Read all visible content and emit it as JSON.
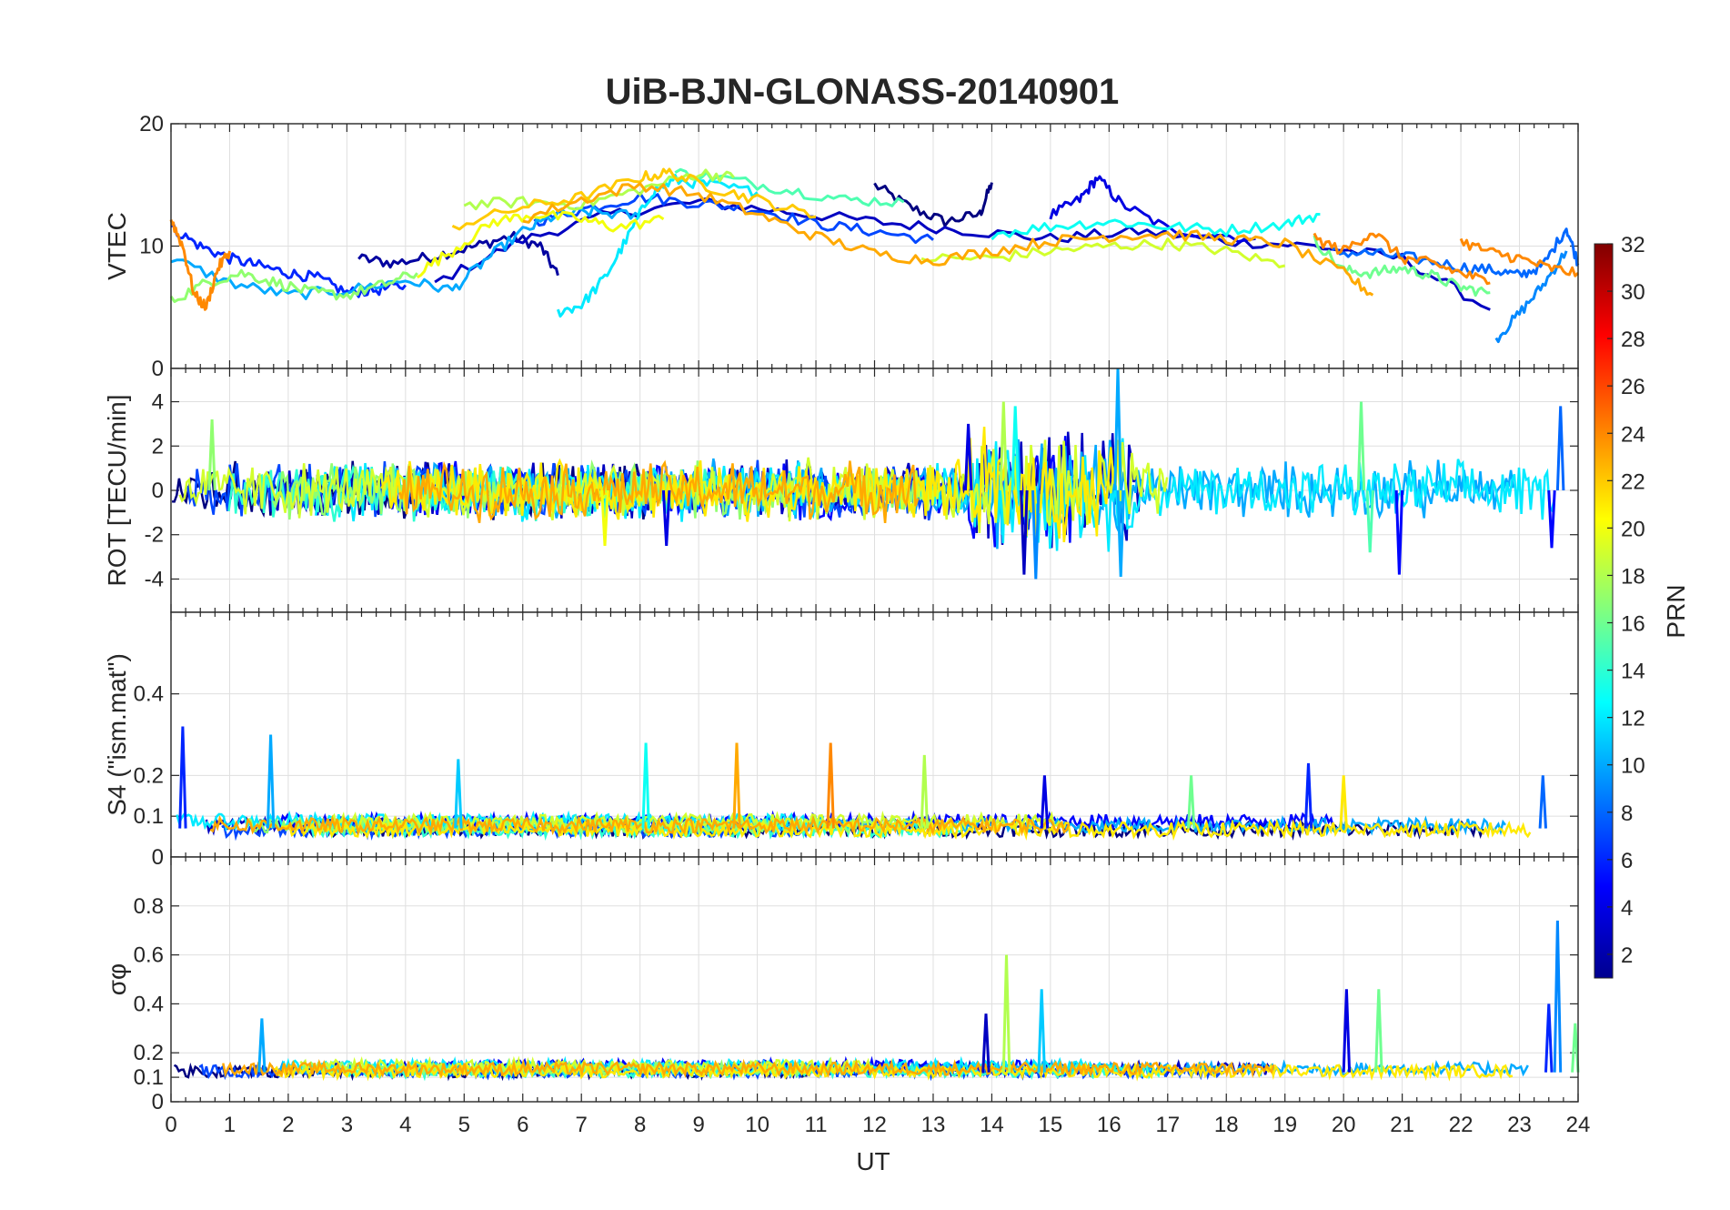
{
  "chart_data": {
    "type": "line",
    "title": "UiB-BJN-GLONASS-20140901",
    "xlabel": "UT",
    "xlim": [
      0,
      24
    ],
    "xticks": [
      "0",
      "1",
      "2",
      "3",
      "4",
      "5",
      "6",
      "7",
      "8",
      "9",
      "10",
      "11",
      "12",
      "13",
      "14",
      "15",
      "16",
      "17",
      "18",
      "19",
      "20",
      "21",
      "22",
      "23",
      "24"
    ],
    "colorbar": {
      "label": "PRN",
      "range": [
        1,
        32
      ],
      "ticks": [
        "2",
        "4",
        "6",
        "8",
        "10",
        "12",
        "14",
        "16",
        "18",
        "20",
        "22",
        "24",
        "26",
        "28",
        "30",
        "32"
      ]
    },
    "panels": [
      {
        "name": "vtec",
        "ylabel": "VTEC",
        "ylim": [
          0,
          20
        ],
        "yticks": [
          {
            "v": 0,
            "label": "0"
          },
          {
            "v": 10,
            "label": "10"
          },
          {
            "v": 20,
            "label": "20"
          }
        ],
        "series": [
          {
            "prn": 1,
            "x": [
              12.0,
              12.6,
              13.2,
              13.8,
              14.0
            ],
            "y": [
              15.0,
              13.2,
              12.0,
              12.6,
              15.2
            ]
          },
          {
            "prn": 2,
            "x": [
              3.2,
              3.8,
              4.5,
              5.2,
              5.8,
              6.3,
              6.6
            ],
            "y": [
              9.0,
              8.6,
              9.2,
              10.0,
              10.8,
              10.0,
              7.6
            ]
          },
          {
            "prn": 3,
            "x": [
              4.5,
              6.0,
              7.5,
              9.0,
              10.5,
              12.0,
              13.5,
              15.0,
              16.5,
              18.0,
              19.5,
              21.0,
              22.5
            ],
            "y": [
              7.0,
              10.5,
              12.6,
              13.6,
              12.8,
              12.0,
              11.3,
              10.6,
              11.2,
              10.4,
              10.0,
              9.0,
              4.8
            ]
          },
          {
            "prn": 4,
            "x": [
              15.0,
              15.5,
              15.8,
              16.2,
              17.0,
              18.5
            ],
            "y": [
              12.5,
              13.8,
              15.6,
              13.5,
              11.4,
              10.6
            ]
          },
          {
            "prn": 6,
            "x": [
              0.0,
              0.5,
              1.0,
              1.5,
              2.0,
              2.5,
              3.0,
              3.5,
              4.0
            ],
            "y": [
              11.5,
              10.0,
              9.0,
              8.4,
              7.8,
              7.4,
              6.2,
              6.4,
              6.8
            ]
          },
          {
            "prn": 7,
            "x": [
              6.2,
              7.0,
              8.0,
              9.0,
              10.0,
              11.0,
              12.0,
              13.0
            ],
            "y": [
              12.0,
              13.0,
              14.0,
              13.5,
              13.0,
              11.8,
              11.2,
              10.5
            ]
          },
          {
            "prn": 8,
            "x": [
              19.8,
              20.5,
              21.2,
              22.0,
              22.6,
              23.0,
              23.4,
              23.8,
              24.0
            ],
            "y": [
              9.5,
              9.4,
              9.0,
              8.3,
              8.0,
              7.6,
              8.4,
              11.5,
              8.6
            ]
          },
          {
            "prn": 9,
            "x": [
              22.6,
              23.0,
              23.4,
              23.8
            ],
            "y": [
              2.4,
              4.5,
              6.8,
              9.6
            ]
          },
          {
            "prn": 10,
            "x": [
              0.0,
              1.0,
              2.0,
              3.0,
              4.0,
              4.8,
              5.4,
              6.0,
              6.6,
              7.2,
              8.0
            ],
            "y": [
              9.0,
              7.0,
              6.0,
              6.4,
              7.2,
              6.4,
              9.0,
              11.2,
              12.6,
              12.8,
              12.4
            ]
          },
          {
            "prn": 12,
            "x": [
              6.6,
              7.0,
              7.4,
              7.8,
              8.2,
              8.6,
              9.2,
              10.0
            ],
            "y": [
              4.6,
              5.2,
              7.4,
              10.8,
              14.4,
              15.4,
              15.0,
              14.4
            ]
          },
          {
            "prn": 13,
            "x": [
              14.0,
              15.0,
              16.0,
              17.0,
              18.0,
              19.0,
              19.6
            ],
            "y": [
              11.0,
              11.6,
              12.0,
              11.6,
              11.3,
              11.8,
              12.6
            ]
          },
          {
            "prn": 15,
            "x": [
              8.6,
              9.5,
              10.5,
              11.5,
              12.5
            ],
            "y": [
              16.0,
              15.5,
              14.6,
              13.8,
              13.6
            ]
          },
          {
            "prn": 16,
            "x": [
              19.5,
              20.0,
              20.5,
              21.0,
              21.5,
              22.0,
              22.5
            ],
            "y": [
              10.5,
              8.0,
              7.8,
              8.2,
              7.6,
              6.6,
              6.2
            ]
          },
          {
            "prn": 17,
            "x": [
              0.0,
              0.6,
              1.2,
              1.8,
              2.4,
              3.0,
              3.6,
              4.2
            ],
            "y": [
              5.5,
              7.0,
              7.8,
              7.0,
              6.2,
              6.0,
              6.8,
              7.8
            ]
          },
          {
            "prn": 18,
            "x": [
              5.0,
              6.0,
              7.0,
              8.0,
              9.0,
              9.6
            ],
            "y": [
              13.4,
              13.6,
              13.4,
              14.6,
              16.0,
              15.6
            ]
          },
          {
            "prn": 19,
            "x": [
              12.8,
              14.0,
              15.0,
              16.0,
              17.0,
              18.0,
              19.0
            ],
            "y": [
              9.0,
              9.0,
              9.6,
              10.0,
              10.2,
              9.6,
              8.4
            ]
          },
          {
            "prn": 20,
            "x": [
              4.2,
              4.8,
              5.5,
              6.2,
              7.0,
              7.6,
              8.4
            ],
            "y": [
              7.8,
              9.6,
              12.0,
              12.6,
              12.2,
              11.5,
              12.2
            ]
          },
          {
            "prn": 22,
            "x": [
              4.8,
              6.0,
              7.0,
              8.0,
              8.5,
              9.2,
              10.0,
              11.0
            ],
            "y": [
              11.6,
              13.2,
              14.0,
              15.6,
              16.0,
              14.8,
              13.8,
              12.4
            ]
          },
          {
            "prn": 23,
            "x": [
              6.0,
              7.0,
              8.0,
              9.0,
              10.0,
              11.0,
              12.0,
              13.0,
              14.0,
              15.0,
              16.0,
              17.0,
              18.0,
              19.0,
              20.0,
              20.5
            ],
            "y": [
              12.2,
              13.8,
              15.0,
              14.2,
              12.6,
              10.8,
              9.4,
              8.8,
              9.6,
              10.4,
              10.8,
              11.0,
              10.6,
              10.2,
              7.8,
              6.0
            ]
          },
          {
            "prn": 24,
            "x": [
              0.0,
              0.2,
              0.4,
              0.6,
              0.8,
              1.0
            ],
            "y": [
              12.2,
              10.0,
              6.0,
              5.0,
              8.2,
              9.6
            ]
          },
          {
            "prn": 24,
            "x": [
              22.0,
              22.5,
              23.0,
              23.5,
              24.0
            ],
            "y": [
              10.4,
              9.5,
              9.0,
              8.2,
              7.8
            ]
          },
          {
            "prn": 24,
            "x": [
              19.5,
              20.0,
              20.5,
              21.0,
              21.5,
              22.0,
              22.5
            ],
            "y": [
              10.6,
              9.6,
              11.2,
              9.0,
              8.6,
              7.8,
              7.0
            ]
          }
        ]
      },
      {
        "name": "rot",
        "ylabel": "ROT [TECU/min]",
        "ylim": [
          -5.5,
          5.5
        ],
        "yticks": [
          {
            "v": -4,
            "label": "-4"
          },
          {
            "v": -2,
            "label": "-2"
          },
          {
            "v": 0,
            "label": "0"
          },
          {
            "v": 2,
            "label": "2"
          },
          {
            "v": 4,
            "label": "4"
          }
        ],
        "spikes": [
          {
            "prn": 4,
            "x": 13.6,
            "y": 3.0
          },
          {
            "prn": 3,
            "x": 14.55,
            "y": -3.8
          },
          {
            "prn": 18,
            "x": 14.2,
            "y": 4.0
          },
          {
            "prn": 9,
            "x": 14.75,
            "y": -4.0
          },
          {
            "prn": 13,
            "x": 14.4,
            "y": 3.8
          },
          {
            "prn": 10,
            "x": 16.15,
            "y": 5.5
          },
          {
            "prn": 10,
            "x": 16.2,
            "y": -3.9
          },
          {
            "prn": 4,
            "x": 8.45,
            "y": -2.5
          },
          {
            "prn": 20,
            "x": 7.4,
            "y": -2.5
          },
          {
            "prn": 16,
            "x": 20.3,
            "y": 4.0
          },
          {
            "prn": 15,
            "x": 20.45,
            "y": -2.8
          },
          {
            "prn": 5,
            "x": 20.95,
            "y": -3.8
          },
          {
            "prn": 8,
            "x": 23.7,
            "y": 3.8
          },
          {
            "prn": 5,
            "x": 23.55,
            "y": -2.6
          },
          {
            "prn": 17,
            "x": 0.7,
            "y": 3.2
          }
        ]
      },
      {
        "name": "s4",
        "ylabel": "S4 (\"ism.mat\")",
        "ylim": [
          0,
          0.6
        ],
        "yticks": [
          {
            "v": 0,
            "label": "0"
          },
          {
            "v": 0.1,
            "label": "0.1"
          },
          {
            "v": 0.2,
            "label": "0.2"
          },
          {
            "v": 0.4,
            "label": "0.4"
          }
        ],
        "base": 0.07,
        "spikes": [
          {
            "prn": 6,
            "x": 0.2,
            "y": 0.32
          },
          {
            "prn": 10,
            "x": 1.7,
            "y": 0.3
          },
          {
            "prn": 11,
            "x": 4.9,
            "y": 0.24
          },
          {
            "prn": 13,
            "x": 8.1,
            "y": 0.28
          },
          {
            "prn": 23,
            "x": 9.65,
            "y": 0.28
          },
          {
            "prn": 24,
            "x": 11.25,
            "y": 0.28
          },
          {
            "prn": 18,
            "x": 12.85,
            "y": 0.25
          },
          {
            "prn": 4,
            "x": 14.9,
            "y": 0.2
          },
          {
            "prn": 6,
            "x": 19.4,
            "y": 0.23
          },
          {
            "prn": 8,
            "x": 23.4,
            "y": 0.2
          },
          {
            "prn": 21,
            "x": 20.0,
            "y": 0.2
          },
          {
            "prn": 16,
            "x": 17.4,
            "y": 0.2
          }
        ]
      },
      {
        "name": "sigma",
        "ylabel": "σφ",
        "ylim": [
          0,
          1
        ],
        "yticks": [
          {
            "v": 0,
            "label": "0"
          },
          {
            "v": 0.1,
            "label": "0.1"
          },
          {
            "v": 0.2,
            "label": "0.2"
          },
          {
            "v": 0.4,
            "label": "0.4"
          },
          {
            "v": 0.6,
            "label": "0.6"
          },
          {
            "v": 0.8,
            "label": "0.8"
          }
        ],
        "base": 0.12,
        "spikes": [
          {
            "prn": 18,
            "x": 14.25,
            "y": 0.6
          },
          {
            "prn": 11,
            "x": 14.85,
            "y": 0.46
          },
          {
            "prn": 4,
            "x": 20.05,
            "y": 0.46
          },
          {
            "prn": 9,
            "x": 23.65,
            "y": 0.74
          },
          {
            "prn": 16,
            "x": 20.6,
            "y": 0.46
          },
          {
            "prn": 3,
            "x": 13.9,
            "y": 0.36
          },
          {
            "prn": 10,
            "x": 1.55,
            "y": 0.34
          },
          {
            "prn": 6,
            "x": 23.5,
            "y": 0.4
          },
          {
            "prn": 16,
            "x": 23.95,
            "y": 0.32
          }
        ]
      }
    ]
  }
}
